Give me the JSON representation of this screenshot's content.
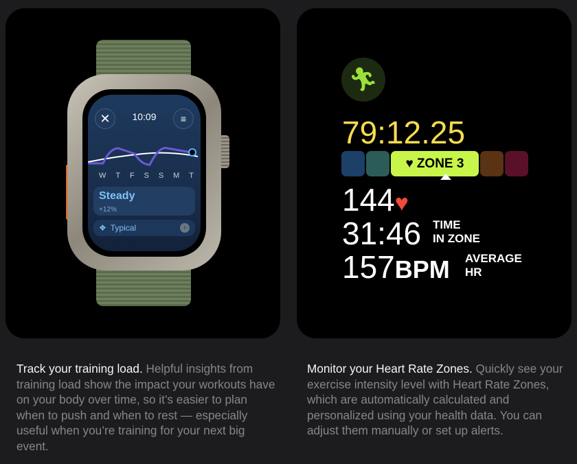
{
  "training": {
    "time": "10:09",
    "days": [
      "W",
      "T",
      "F",
      "S",
      "S",
      "M",
      "T"
    ],
    "status": "Steady",
    "change": "+12%",
    "typical": "Typical",
    "heading": "Track your training load.",
    "body": " Helpful insights from training load show the impact your workouts have on your body over time, so it’s easier to plan when to push and when to rest — especially useful when you’re training for your next big event."
  },
  "heart": {
    "elapsed": "79:12.25",
    "zone": "ZONE 3",
    "zone_colors": [
      "#1d4068",
      "#2b5c5a",
      "#c8f54a",
      "#5a3214",
      "#5a1029"
    ],
    "hr": "144",
    "time_in_zone": "31:46",
    "time_label_1": "TIME",
    "time_label_2": "IN ZONE",
    "avg": "157",
    "avg_unit": "BPM",
    "avg_label_1": "AVERAGE",
    "avg_label_2": "HR",
    "heading": "Monitor your Heart Rate Zones.",
    "body": " Quickly see your exercise intensity level with Heart Rate Zones, which are automatically calculated and personalized using your health data. You can adjust them manually or set up alerts."
  }
}
